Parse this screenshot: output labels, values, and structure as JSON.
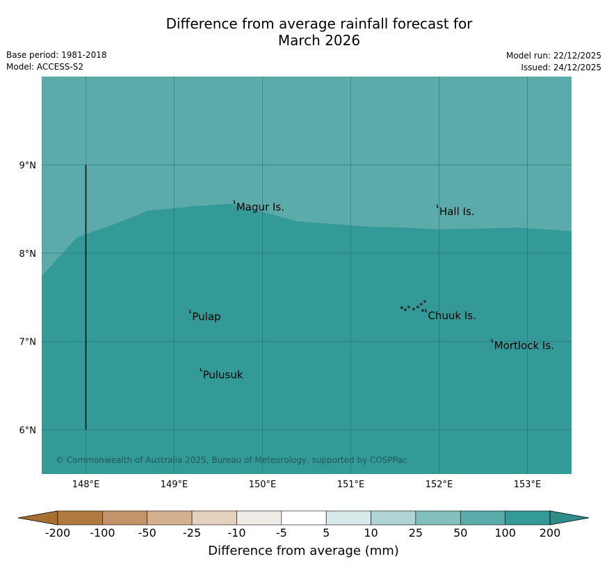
{
  "title_line1": "Difference from average rainfall forecast for",
  "title_line2": "March 2026",
  "base_period": "Base period: 1981-2018",
  "model": "Model: ACCESS-S2",
  "model_run": "Model run: 22/12/2025",
  "issued": "Issued: 24/12/2025",
  "copyright": "© Commonwealth of Australia 2025, Bureau of Meteorology, supported by COSPPac",
  "map": {
    "lon_range": [
      147.5,
      153.5
    ],
    "lat_range": [
      5.5,
      10.0
    ],
    "lon_ticks": [
      {
        "value": 148,
        "label": "148°E"
      },
      {
        "value": 149,
        "label": "149°E"
      },
      {
        "value": 150,
        "label": "150°E"
      },
      {
        "value": 151,
        "label": "151°E"
      },
      {
        "value": 152,
        "label": "152°E"
      },
      {
        "value": 153,
        "label": "153°E"
      }
    ],
    "lat_ticks": [
      {
        "value": 9,
        "label": "9°N"
      },
      {
        "value": 8,
        "label": "8°N"
      },
      {
        "value": 7,
        "label": "7°N"
      },
      {
        "value": 6,
        "label": "6°N"
      }
    ],
    "places": [
      {
        "name": "Magur Is.",
        "lon": 149.68,
        "lat": 8.57
      },
      {
        "name": "Hall Is.",
        "lon": 151.98,
        "lat": 8.52
      },
      {
        "name": "Pulap",
        "lon": 149.18,
        "lat": 7.33
      },
      {
        "name": "Chuuk Is.",
        "lon": 151.85,
        "lat": 7.34
      },
      {
        "name": "Mortlock Is.",
        "lon": 152.6,
        "lat": 7.0
      },
      {
        "name": "Pulusuk",
        "lon": 149.3,
        "lat": 6.67
      }
    ],
    "boundary_line": {
      "lon": 148.0,
      "lat_range": [
        6.0,
        9.0
      ]
    },
    "regions": [
      {
        "category": "100 to 200",
        "color": "#5aabaa"
      },
      {
        "category": "> 200",
        "color": "#339a97"
      }
    ],
    "region_boundary": [
      [
        147.5,
        7.74
      ],
      [
        147.9,
        8.18
      ],
      [
        148.3,
        8.32
      ],
      [
        148.7,
        8.48
      ],
      [
        149.2,
        8.53
      ],
      [
        149.65,
        8.56
      ],
      [
        150.0,
        8.47
      ],
      [
        150.4,
        8.36
      ],
      [
        150.8,
        8.33
      ],
      [
        151.2,
        8.3
      ],
      [
        151.6,
        8.29
      ],
      [
        152.0,
        8.27
      ],
      [
        152.5,
        8.28
      ],
      [
        152.9,
        8.29
      ],
      [
        153.5,
        8.25
      ]
    ]
  },
  "colorbar": {
    "label": "Difference from average (mm)",
    "ticks": [
      "-200",
      "-100",
      "-50",
      "-25",
      "-10",
      "-5",
      "5",
      "10",
      "25",
      "50",
      "100",
      "200"
    ],
    "colors": [
      "#a77032",
      "#b07940",
      "#c29468",
      "#d3b08e",
      "#e3d0bd",
      "#efebe6",
      "#ffffff",
      "#d7e9e8",
      "#aed4d3",
      "#83bfbd",
      "#5aabaa",
      "#339a97",
      "#2f8c89"
    ]
  }
}
